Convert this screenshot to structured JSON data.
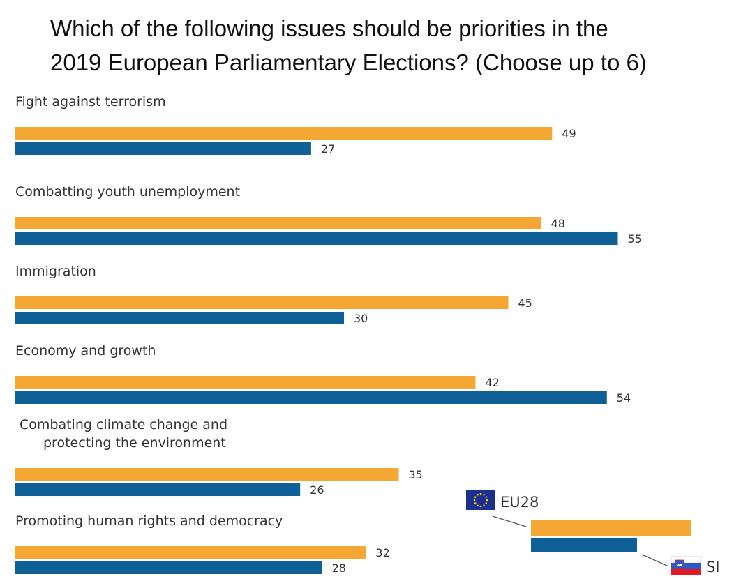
{
  "chart_data": {
    "type": "bar",
    "orientation": "horizontal",
    "title_lines": [
      "Which of the following issues should be priorities in the",
      "2019 European Parliamentary Elections? (Choose up to 6)"
    ],
    "categories": [
      [
        "Fight against terrorism"
      ],
      [
        "Combatting youth unemployment"
      ],
      [
        "Immigration"
      ],
      [
        "Economy and growth"
      ],
      [
        "Combating climate change and",
        "protecting the environment"
      ],
      [
        "Promoting human rights and democracy"
      ]
    ],
    "series": [
      {
        "name": "EU28",
        "color": "#f5a733",
        "values": [
          49,
          48,
          45,
          42,
          35,
          32
        ]
      },
      {
        "name": "SI",
        "color": "#0f6096",
        "values": [
          27,
          55,
          30,
          54,
          26,
          28
        ]
      }
    ],
    "legend": {
      "position": "bottom-right",
      "items": [
        {
          "label": "EU28",
          "icon": "eu-flag-icon"
        },
        {
          "label": "SI",
          "icon": "slovenia-flag-icon"
        }
      ]
    },
    "grid": false
  }
}
